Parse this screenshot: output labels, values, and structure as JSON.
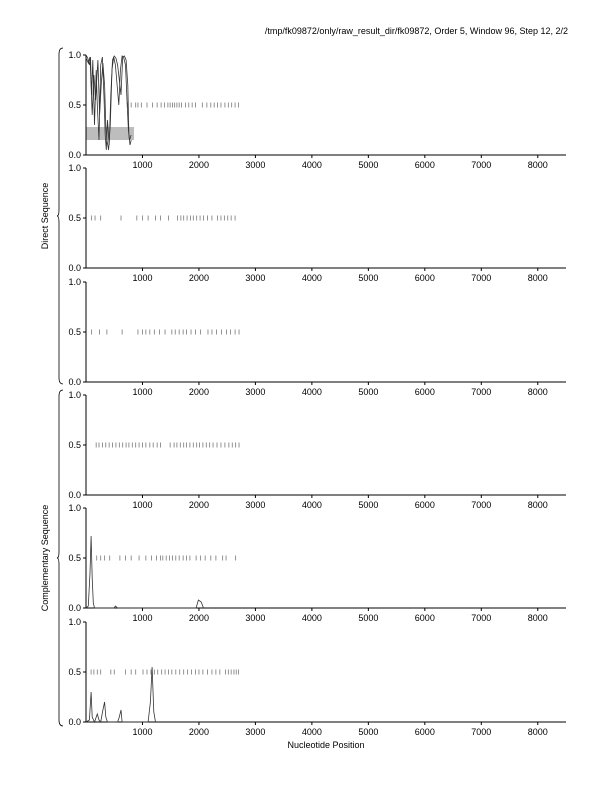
{
  "header": {
    "title": "/tmp/fk09872/only/raw_result_dir/fk09872, Order 5, Window 96, Step 12, 2/2"
  },
  "labels": {
    "direct": "Direct Sequence",
    "complementary": "Complementary Sequence",
    "xlabel": "Nucleotide Position"
  },
  "colors": {
    "axis": "#000000",
    "trace": "#333333",
    "marker": "#777777",
    "highlight": "#bdbdbd"
  },
  "chart_data": [
    {
      "type": "line",
      "group": "direct",
      "xlim": [
        0,
        8500
      ],
      "ylim": [
        0,
        1
      ],
      "xticks": [
        1000,
        2000,
        3000,
        4000,
        5000,
        6000,
        7000,
        8000
      ],
      "yticks": [
        "0.0",
        "0.5",
        "1.0"
      ],
      "highlight": {
        "x": [
          0,
          850
        ],
        "y": [
          0.15,
          0.28
        ]
      },
      "markers": [
        740,
        800,
        880,
        920,
        980,
        1080,
        1180,
        1260,
        1330,
        1390,
        1450,
        1490,
        1530,
        1570,
        1610,
        1650,
        1690,
        1760,
        1820,
        1880,
        1940,
        2060,
        2140,
        2210,
        2270,
        2330,
        2390,
        2460,
        2520,
        2580,
        2640,
        2700
      ],
      "series": [
        {
          "points": [
            [
              0,
              1.0
            ],
            [
              30,
              0.97
            ],
            [
              60,
              0.9
            ],
            [
              80,
              0.98
            ],
            [
              100,
              0.6
            ],
            [
              120,
              0.95
            ],
            [
              150,
              0.3
            ],
            [
              180,
              0.85
            ],
            [
              200,
              0.5
            ],
            [
              230,
              0.15
            ],
            [
              260,
              0.9
            ],
            [
              290,
              0.98
            ],
            [
              320,
              0.55
            ],
            [
              340,
              0.2
            ],
            [
              360,
              0.05
            ],
            [
              380,
              0.35
            ],
            [
              410,
              0.1
            ],
            [
              440,
              0.6
            ],
            [
              470,
              0.95
            ],
            [
              500,
              0.99
            ],
            [
              530,
              0.97
            ],
            [
              560,
              0.9
            ],
            [
              590,
              0.75
            ],
            [
              620,
              0.6
            ],
            [
              650,
              0.98
            ],
            [
              680,
              0.99
            ],
            [
              710,
              0.95
            ],
            [
              740,
              0.7
            ],
            [
              760,
              0.2
            ],
            [
              780,
              0.1
            ],
            [
              800,
              0.15
            ]
          ]
        },
        {
          "points": [
            [
              0,
              0.97
            ],
            [
              40,
              0.92
            ],
            [
              70,
              0.98
            ],
            [
              110,
              0.4
            ],
            [
              140,
              0.8
            ],
            [
              170,
              0.55
            ],
            [
              210,
              0.95
            ],
            [
              240,
              0.4
            ],
            [
              270,
              0.7
            ],
            [
              300,
              0.92
            ],
            [
              330,
              0.7
            ],
            [
              350,
              0.3
            ],
            [
              370,
              0.15
            ],
            [
              400,
              0.05
            ],
            [
              430,
              0.3
            ],
            [
              460,
              0.85
            ],
            [
              490,
              0.98
            ],
            [
              520,
              0.9
            ],
            [
              550,
              0.7
            ],
            [
              580,
              0.5
            ],
            [
              610,
              0.85
            ],
            [
              640,
              0.99
            ],
            [
              670,
              0.97
            ],
            [
              700,
              0.9
            ],
            [
              730,
              0.5
            ],
            [
              750,
              0.25
            ],
            [
              770,
              0.15
            ],
            [
              800,
              0.2
            ]
          ]
        }
      ]
    },
    {
      "type": "line",
      "group": "direct",
      "xlim": [
        0,
        8500
      ],
      "ylim": [
        0,
        1
      ],
      "xticks": [
        1000,
        2000,
        3000,
        4000,
        5000,
        6000,
        7000,
        8000
      ],
      "yticks": [
        "0.0",
        "0.5",
        "1.0"
      ],
      "markers": [
        100,
        160,
        260,
        620,
        900,
        1000,
        1100,
        1230,
        1320,
        1460,
        1620,
        1680,
        1730,
        1790,
        1850,
        1900,
        1960,
        2020,
        2080,
        2150,
        2230,
        2330,
        2390,
        2450,
        2510,
        2570,
        2640
      ],
      "series": []
    },
    {
      "type": "line",
      "group": "direct",
      "xlim": [
        0,
        8500
      ],
      "ylim": [
        0,
        1
      ],
      "xticks": [
        1000,
        2000,
        3000,
        4000,
        5000,
        6000,
        7000,
        8000
      ],
      "yticks": [
        "0.0",
        "0.5",
        "1.0"
      ],
      "markers": [
        100,
        240,
        370,
        640,
        920,
        1000,
        1060,
        1130,
        1210,
        1300,
        1400,
        1520,
        1580,
        1650,
        1720,
        1780,
        1860,
        1940,
        2030,
        2160,
        2230,
        2310,
        2400,
        2490,
        2560,
        2640,
        2710
      ],
      "series": []
    },
    {
      "type": "line",
      "group": "complementary",
      "xlim": [
        0,
        8500
      ],
      "ylim": [
        0,
        1
      ],
      "xticks": [
        1000,
        2000,
        3000,
        4000,
        5000,
        6000,
        7000,
        8000
      ],
      "yticks": [
        "0.0",
        "0.5",
        "1.0"
      ],
      "markers": [
        180,
        230,
        290,
        350,
        410,
        470,
        530,
        590,
        650,
        710,
        760,
        820,
        880,
        940,
        1000,
        1060,
        1130,
        1190,
        1260,
        1320,
        1490,
        1560,
        1610,
        1670,
        1730,
        1780,
        1840,
        1900,
        1960,
        2010,
        2070,
        2130,
        2190,
        2250,
        2320,
        2390,
        2460,
        2530,
        2590,
        2650,
        2710
      ],
      "series": []
    },
    {
      "type": "line",
      "group": "complementary",
      "xlim": [
        0,
        8500
      ],
      "ylim": [
        0,
        1
      ],
      "xticks": [
        1000,
        2000,
        3000,
        4000,
        5000,
        6000,
        7000,
        8000
      ],
      "yticks": [
        "0.0",
        "0.5",
        "1.0"
      ],
      "markers": [
        190,
        260,
        330,
        420,
        600,
        700,
        800,
        940,
        1060,
        1160,
        1250,
        1320,
        1360,
        1420,
        1480,
        1530,
        1590,
        1650,
        1720,
        1780,
        1840,
        1950,
        2030,
        2110,
        2210,
        2300,
        2420,
        2480,
        2650
      ],
      "series": [
        {
          "points": [
            [
              0,
              0.0
            ],
            [
              40,
              0.02
            ],
            [
              70,
              0.35
            ],
            [
              90,
              0.72
            ],
            [
              110,
              0.3
            ],
            [
              130,
              0.05
            ],
            [
              150,
              0.0
            ],
            [
              500,
              0.0
            ],
            [
              520,
              0.02
            ],
            [
              560,
              0.0
            ],
            [
              1950,
              0.0
            ],
            [
              1990,
              0.08
            ],
            [
              2040,
              0.06
            ],
            [
              2080,
              0.0
            ]
          ]
        }
      ]
    },
    {
      "type": "line",
      "group": "complementary",
      "xlim": [
        0,
        8500
      ],
      "ylim": [
        0,
        1
      ],
      "xticks": [
        1000,
        2000,
        3000,
        4000,
        5000,
        6000,
        7000,
        8000
      ],
      "yticks": [
        "0.0",
        "0.5",
        "1.0"
      ],
      "markers": [
        90,
        140,
        200,
        260,
        440,
        500,
        700,
        800,
        880,
        1010,
        1080,
        1150,
        1210,
        1270,
        1340,
        1400,
        1460,
        1520,
        1590,
        1660,
        1730,
        1800,
        1870,
        1940,
        2000,
        2070,
        2150,
        2230,
        2300,
        2370,
        2470,
        2520,
        2570,
        2620,
        2660,
        2700
      ],
      "series": [
        {
          "points": [
            [
              0,
              0.0
            ],
            [
              60,
              0.02
            ],
            [
              90,
              0.3
            ],
            [
              110,
              0.05
            ],
            [
              150,
              0.0
            ],
            [
              200,
              0.08
            ],
            [
              230,
              0.02
            ],
            [
              260,
              0.0
            ],
            [
              300,
              0.12
            ],
            [
              330,
              0.2
            ],
            [
              350,
              0.05
            ],
            [
              380,
              0.0
            ],
            [
              560,
              0.0
            ],
            [
              590,
              0.05
            ],
            [
              620,
              0.12
            ],
            [
              640,
              0.0
            ],
            [
              1100,
              0.0
            ],
            [
              1140,
              0.2
            ],
            [
              1170,
              0.55
            ],
            [
              1200,
              0.1
            ],
            [
              1230,
              0.0
            ]
          ]
        }
      ]
    }
  ]
}
